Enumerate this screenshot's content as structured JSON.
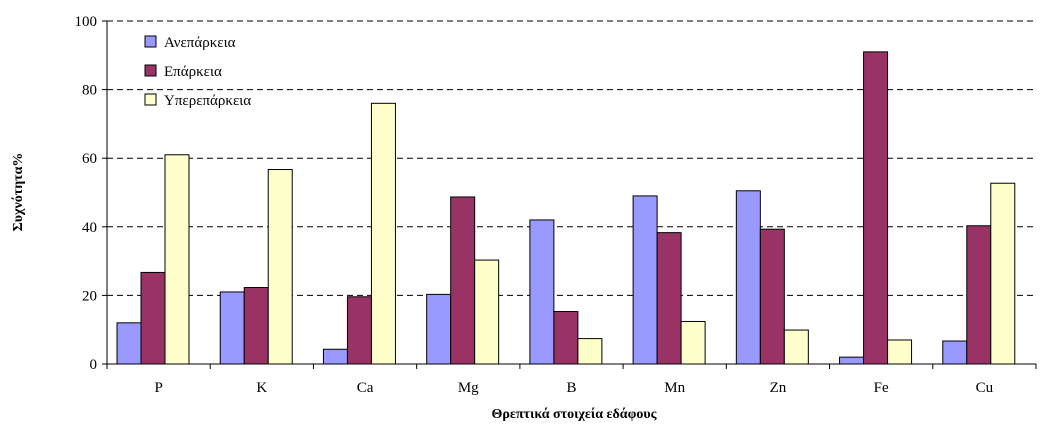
{
  "chart_data": {
    "type": "bar",
    "title": "",
    "xlabel": "Θρεπτικά στοιχεία εδάφους",
    "ylabel": "Συχνότητα%",
    "ylim": [
      0,
      100
    ],
    "yticks": [
      0,
      20,
      40,
      60,
      80,
      100
    ],
    "grid": "horizontal-dashed",
    "legend_position": "top-left",
    "categories": [
      "P",
      "K",
      "Ca",
      "Mg",
      "B",
      "Mn",
      "Zn",
      "Fe",
      "Cu"
    ],
    "series": [
      {
        "name": "Ανεπάρκεια",
        "color": "#9999ff",
        "values": [
          12,
          21,
          4.3,
          20.3,
          42,
          49,
          50.5,
          2,
          6.7
        ]
      },
      {
        "name": "Επάρκεια",
        "color": "#993366",
        "values": [
          26.7,
          22.3,
          19.6,
          48.7,
          15.3,
          38.3,
          39.3,
          91,
          40.3
        ]
      },
      {
        "name": "Υπερεπάρκεια",
        "color": "#ffffcc",
        "values": [
          61,
          56.7,
          76,
          30.3,
          7.4,
          12.4,
          9.9,
          7,
          52.7
        ]
      }
    ]
  }
}
